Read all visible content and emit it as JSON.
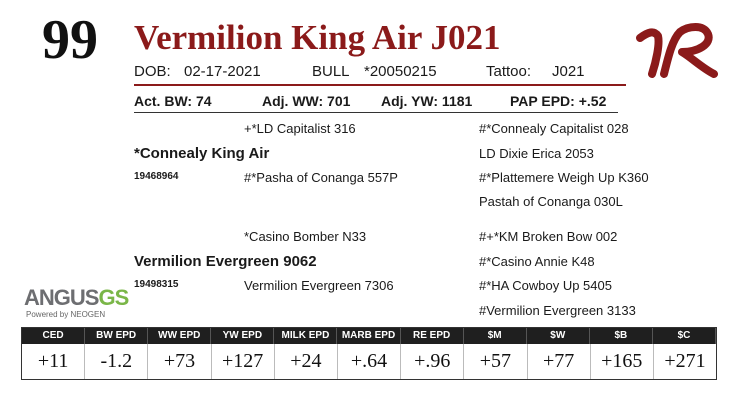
{
  "colors": {
    "title_red": "#8B1A1A",
    "rule_red": "#8B1A1A",
    "header_bar": "#1f1f1f",
    "angus_gray": "#6d6e71",
    "angus_green": "#7ab648"
  },
  "lot": {
    "number": "99"
  },
  "animal": {
    "name": "Vermilion King Air J021",
    "dob_label": "DOB:",
    "dob": "02-17-2021",
    "sex": "BULL",
    "reg": "*20050215",
    "tattoo_label": "Tattoo:",
    "tattoo": "J021"
  },
  "performance": {
    "bw": "Act. BW: 74",
    "ww": "Adj. WW: 701",
    "yw": "Adj. YW: 1181",
    "pap": "PAP EPD: +.52"
  },
  "pedigree": {
    "sire": {
      "name": "*Connealy King Air",
      "reg": "19468964"
    },
    "sire_sire": "+*LD Capitalist 316",
    "sire_dam": "#*Pasha of Conanga 557P",
    "sss": "#*Connealy Capitalist 028",
    "ssd": "LD Dixie Erica 2053",
    "sds": "#*Plattemere Weigh Up K360",
    "sdd": "Pastah of Conanga 030L",
    "dam": {
      "name": "Vermilion Evergreen 9062",
      "reg": "19498315"
    },
    "dam_sire": "*Casino Bomber N33",
    "dam_dam": "Vermilion Evergreen 7306",
    "dss": "#+*KM Broken Bow 002",
    "dsd": "#*Casino Annie K48",
    "dds": "#*HA Cowboy Up 5405",
    "ddd": "#Vermilion Evergreen 3133"
  },
  "logo": {
    "brand_icon": "vr-brand-logo",
    "angus_word_a": "ANGUS",
    "angus_word_b": "GS",
    "angus_powered": "Powered by NEOGEN"
  },
  "epd": {
    "headers": [
      "CED",
      "BW EPD",
      "WW EPD",
      "YW EPD",
      "MILK EPD",
      "MARB EPD",
      "RE EPD",
      "$M",
      "$W",
      "$B",
      "$C"
    ],
    "values": [
      "+11",
      "-1.2",
      "+73",
      "+127",
      "+24",
      "+.64",
      "+.96",
      "+57",
      "+77",
      "+165",
      "+271"
    ]
  }
}
